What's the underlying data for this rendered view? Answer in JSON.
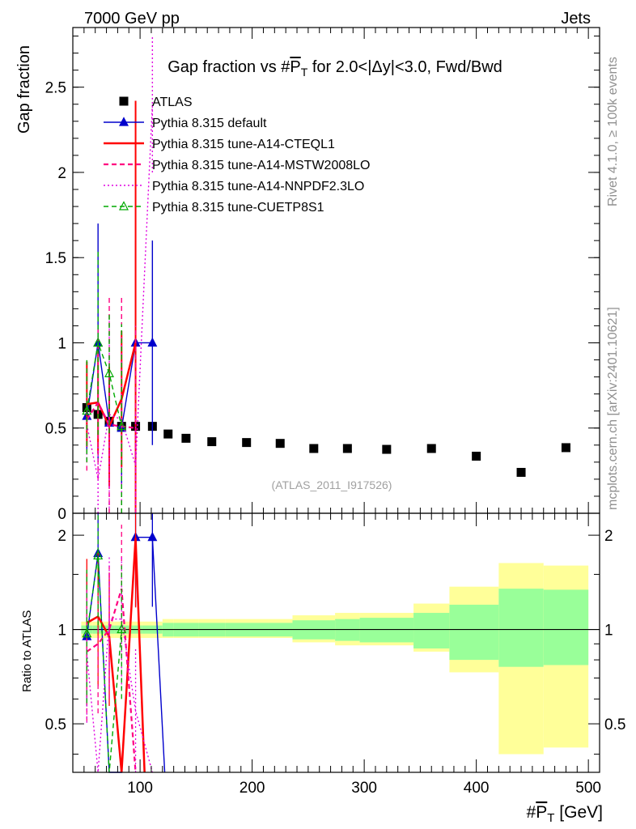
{
  "header": {
    "left": "7000 GeV pp",
    "right": "Jets"
  },
  "side": {
    "rivet": "Rivet 4.1.0, ≥ 100k events",
    "mcplots": "mcplots.cern.ch [arXiv:2401.10621]"
  },
  "chart_data": [
    {
      "type": "scatter",
      "panel": "main",
      "title": "Gap fraction vs #P_T for 2.0<|Δy|<3.0, Fwd/Bwd",
      "title_parts": {
        "pre": "Gap fraction vs #",
        "sym": "P",
        "sub": "T",
        "post": " for 2.0<|Δy|<3.0, Fwd/Bwd"
      },
      "ylabel": "Gap fraction",
      "xlim": [
        40,
        510
      ],
      "ylim": [
        0,
        2.85
      ],
      "yticks": [
        0,
        0.5,
        1,
        1.5,
        2,
        2.5
      ],
      "ytick_labels": [
        "0",
        "0.5",
        "1",
        "1.5",
        "2",
        "2.5"
      ],
      "watermark": "(ATLAS_2011_I917526)",
      "legend_position": "top-left",
      "series": [
        {
          "name": "ATLAS",
          "color": "#000000",
          "style": "marker-square",
          "x": [
            52.5,
            62.5,
            72.5,
            83.5,
            96,
            111,
            125,
            141,
            164,
            195,
            225,
            255,
            285,
            320,
            360,
            400,
            440,
            480
          ],
          "y": [
            0.62,
            0.58,
            0.54,
            0.51,
            0.51,
            0.51,
            0.465,
            0.44,
            0.42,
            0.415,
            0.41,
            0.38,
            0.38,
            0.375,
            0.38,
            0.335,
            0.24,
            0.385
          ]
        },
        {
          "name": "Pythia 8.315 default",
          "color": "#0000cc",
          "style": "solid-triangle",
          "x": [
            52.5,
            62.5,
            72.5,
            83.5,
            96,
            111
          ],
          "y": [
            0.57,
            1.0,
            0.53,
            0.5,
            1.0,
            1.0
          ],
          "err": [
            0.2,
            0.7,
            0.25,
            0.35,
            0.6,
            0.6
          ]
        },
        {
          "name": "Pythia 8.315 tune-A14-CTEQL1",
          "color": "#ff0000",
          "style": "solid-thick",
          "x": [
            52.5,
            62.5,
            72.5,
            83.5,
            96
          ],
          "y": [
            0.64,
            0.65,
            0.51,
            0.67,
            1.0
          ],
          "err": [
            0.25,
            0.3,
            0.35,
            0.4,
            1.42
          ]
        },
        {
          "name": "Pythia 8.315 tune-A14-MSTW2008LO",
          "color": "#ff0080",
          "style": "dashed",
          "x": [
            52.5,
            62.5,
            72.5,
            83.5,
            96
          ],
          "y": [
            0.55,
            0.65,
            0.52,
            0.51,
            0.5
          ],
          "err": [
            0.3,
            0.45,
            0.75,
            0.76,
            0.6
          ]
        },
        {
          "name": "Pythia 8.315 tune-A14-NNPDF2.3LO",
          "color": "#e000e0",
          "style": "dotted",
          "x": [
            52.5,
            62.5,
            72.5,
            83.5,
            96,
            111
          ],
          "y": [
            0.52,
            0.2,
            0.58,
            0.55,
            0.28,
            2.4
          ],
          "err": [
            0.2,
            0.2,
            0.55,
            0.5,
            0.3,
            0.4
          ]
        },
        {
          "name": "Pythia 8.315 tune-CUETP8S1",
          "color": "#00aa00",
          "style": "dashed-triangle",
          "x": [
            52.5,
            62.5,
            72.5,
            83.5
          ],
          "y": [
            0.6,
            1.0,
            0.82,
            0.51
          ],
          "err": [
            0.3,
            0.54,
            0.35,
            0.6
          ]
        }
      ]
    },
    {
      "type": "line",
      "panel": "ratio",
      "ylabel": "Ratio to ATLAS",
      "xlabel_parts": {
        "pre": "#",
        "sym": "P",
        "sub": "T",
        "post": " [GeV]"
      },
      "xlim": [
        40,
        510
      ],
      "ylim": [
        0.35,
        2.35
      ],
      "log_y": true,
      "xticks": [
        100,
        200,
        300,
        400,
        500
      ],
      "xtick_labels": [
        "100",
        "200",
        "300",
        "400",
        "500"
      ],
      "yticks": [
        0.5,
        1,
        2
      ],
      "ytick_labels": [
        "0.5",
        "1",
        "2"
      ],
      "bins": [
        [
          47.5,
          57.5
        ],
        [
          57.5,
          67.5
        ],
        [
          67.5,
          77.5
        ],
        [
          77.5,
          90
        ],
        [
          90,
          102
        ],
        [
          102,
          120
        ],
        [
          120,
          130
        ],
        [
          130,
          152
        ],
        [
          152,
          176
        ],
        [
          176,
          214
        ],
        [
          214,
          236
        ],
        [
          236,
          274
        ],
        [
          274,
          296
        ],
        [
          296,
          344
        ],
        [
          344,
          376
        ],
        [
          376,
          420
        ],
        [
          420,
          460
        ],
        [
          460,
          500
        ]
      ],
      "stat_band": [
        [
          0.97,
          1.03
        ],
        [
          0.97,
          1.03
        ],
        [
          0.97,
          1.03
        ],
        [
          0.97,
          1.03
        ],
        [
          0.97,
          1.03
        ],
        [
          0.97,
          1.03
        ],
        [
          0.95,
          1.05
        ],
        [
          0.95,
          1.05
        ],
        [
          0.95,
          1.05
        ],
        [
          0.95,
          1.05
        ],
        [
          0.95,
          1.05
        ],
        [
          0.93,
          1.07
        ],
        [
          0.92,
          1.08
        ],
        [
          0.91,
          1.09
        ],
        [
          0.87,
          1.13
        ],
        [
          0.8,
          1.2
        ],
        [
          0.76,
          1.35
        ],
        [
          0.77,
          1.34
        ]
      ],
      "total_band": [
        [
          0.94,
          1.06
        ],
        [
          0.94,
          1.06
        ],
        [
          0.94,
          1.06
        ],
        [
          0.94,
          1.06
        ],
        [
          0.94,
          1.06
        ],
        [
          0.94,
          1.06
        ],
        [
          0.94,
          1.08
        ],
        [
          0.94,
          1.08
        ],
        [
          0.94,
          1.08
        ],
        [
          0.94,
          1.08
        ],
        [
          0.94,
          1.08
        ],
        [
          0.91,
          1.11
        ],
        [
          0.89,
          1.13
        ],
        [
          0.89,
          1.13
        ],
        [
          0.85,
          1.21
        ],
        [
          0.73,
          1.37
        ],
        [
          0.4,
          1.63
        ],
        [
          0.42,
          1.6
        ]
      ],
      "series": [
        {
          "name": "Pythia 8.315 default",
          "color": "#0000cc",
          "style": "solid-triangle",
          "x": [
            52.5,
            62.5,
            72.5,
            83.5,
            96,
            111,
            122
          ],
          "y": [
            0.95,
            1.75,
            0.3,
            0.3,
            1.97,
            1.97,
            0.3
          ]
        },
        {
          "name": "Pythia 8.315 tune-A14-CTEQL1",
          "color": "#ff0000",
          "style": "solid-thick",
          "x": [
            52.5,
            62.5,
            72.5,
            83.5,
            96,
            104
          ],
          "y": [
            1.05,
            1.1,
            0.95,
            0.3,
            1.96,
            0.3
          ]
        },
        {
          "name": "Pythia 8.315 tune-A14-MSTW2008LO",
          "color": "#ff0080",
          "style": "dashed",
          "x": [
            52.5,
            62.5,
            72.5,
            83.5,
            96
          ],
          "y": [
            0.85,
            0.9,
            1.0,
            1.35,
            0.3
          ]
        },
        {
          "name": "Pythia 8.315 tune-A14-NNPDF2.3LO",
          "color": "#e000e0",
          "style": "dotted",
          "x": [
            52.5,
            62.5,
            72.5,
            83.5,
            96,
            111
          ],
          "y": [
            0.84,
            0.35,
            1.08,
            1.08,
            0.55,
            0.3
          ]
        },
        {
          "name": "Pythia 8.315 tune-CUETP8S1",
          "color": "#00aa00",
          "style": "dashed-triangle",
          "x": [
            52.5,
            62.5,
            72.5,
            83.5
          ],
          "y": [
            0.97,
            1.72,
            0.3,
            1.0
          ]
        }
      ]
    }
  ]
}
